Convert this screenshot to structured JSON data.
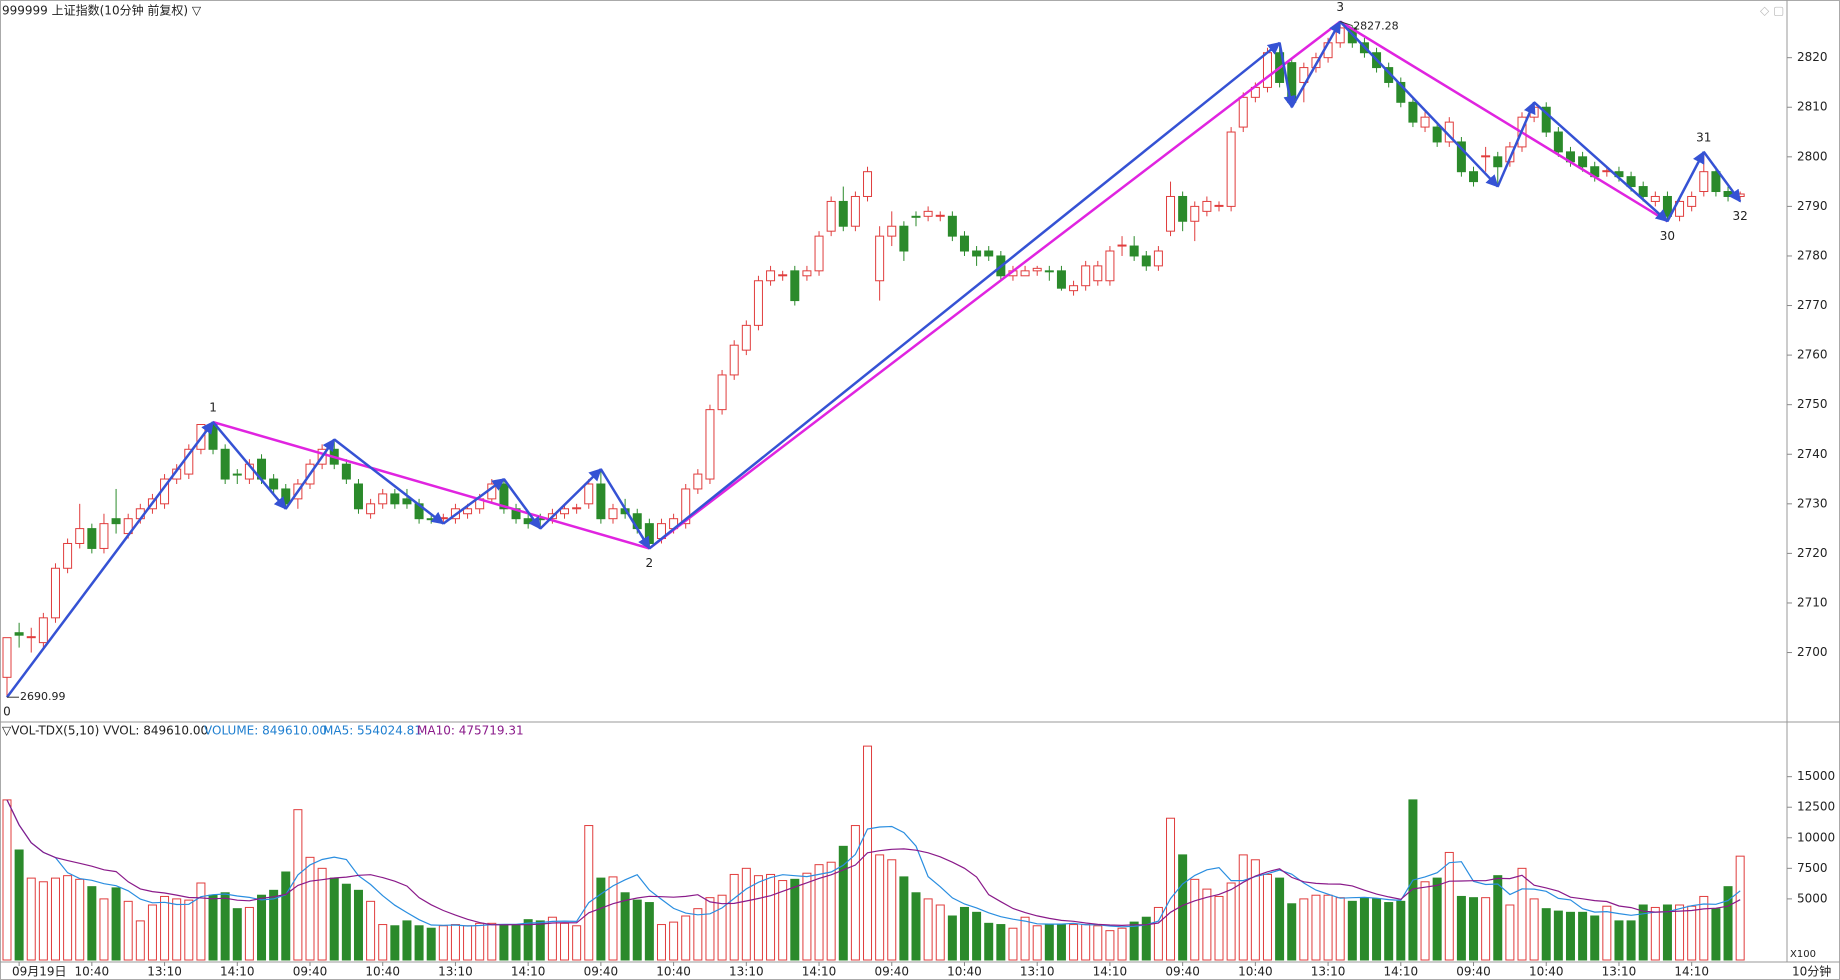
{
  "chart_data": [
    {
      "type": "candlestick",
      "title": "999999 上证指数(10分钟 前复权) ▽",
      "up_color": "#e03c3c",
      "down_color": "#2b8a2b",
      "ylim": [
        2687.4,
        2827.6
      ],
      "yticks": [
        2700,
        2710,
        2720,
        2730,
        2740,
        2750,
        2760,
        2770,
        2780,
        2790,
        2800,
        2810,
        2820
      ],
      "annotations": {
        "low": "2690.99",
        "high": "2827.28"
      },
      "wave_labels": [
        "0",
        "1",
        "2",
        "3",
        "30",
        "31",
        "32"
      ],
      "zigzag_colors": [
        "#3552d4",
        "#e024e0"
      ],
      "ohlc": [
        [
          2695,
          2703,
          2690.99,
          2703
        ],
        [
          2704,
          2706,
          2701,
          2703.5
        ],
        [
          2703,
          2705,
          2700,
          2703.2
        ],
        [
          2702,
          2708,
          2701,
          2707
        ],
        [
          2707,
          2718,
          2706,
          2717
        ],
        [
          2717,
          2723,
          2716,
          2722
        ],
        [
          2722,
          2730,
          2721,
          2725
        ],
        [
          2725,
          2726,
          2720,
          2721
        ],
        [
          2721,
          2728,
          2720,
          2726
        ],
        [
          2727,
          2733,
          2724,
          2726
        ],
        [
          2724,
          2728,
          2723,
          2727
        ],
        [
          2727,
          2730,
          2726,
          2729
        ],
        [
          2729,
          2732,
          2728,
          2731
        ],
        [
          2730,
          2736,
          2729,
          2735
        ],
        [
          2735,
          2738,
          2734,
          2737
        ],
        [
          2736,
          2742,
          2735,
          2741
        ],
        [
          2741,
          2746,
          2740,
          2746
        ],
        [
          2746,
          2746.5,
          2740,
          2741
        ],
        [
          2741,
          2742,
          2734,
          2735
        ],
        [
          2736,
          2737,
          2734,
          2735.8
        ],
        [
          2735,
          2739,
          2734,
          2738
        ],
        [
          2739,
          2740,
          2734,
          2735
        ],
        [
          2735,
          2736,
          2732,
          2733
        ],
        [
          2733,
          2734,
          2729,
          2730
        ],
        [
          2731,
          2735,
          2729,
          2734
        ],
        [
          2734,
          2739,
          2733,
          2738
        ],
        [
          2738,
          2742,
          2737,
          2741
        ],
        [
          2741,
          2743,
          2737,
          2738
        ],
        [
          2738,
          2739,
          2734,
          2735
        ],
        [
          2734,
          2735,
          2728,
          2729
        ],
        [
          2728,
          2731,
          2727,
          2730
        ],
        [
          2730,
          2733,
          2729,
          2732
        ],
        [
          2732,
          2733,
          2729,
          2730
        ],
        [
          2731,
          2733,
          2729,
          2730
        ],
        [
          2730,
          2731,
          2726,
          2727
        ],
        [
          2727,
          2728,
          2726,
          2726.8
        ],
        [
          2727,
          2728,
          2726,
          2727.2
        ],
        [
          2727,
          2730,
          2726,
          2729
        ],
        [
          2728,
          2730,
          2727,
          2729
        ],
        [
          2729,
          2732,
          2728,
          2731
        ],
        [
          2731,
          2735,
          2730,
          2734
        ],
        [
          2734,
          2735,
          2728,
          2729
        ],
        [
          2729,
          2730,
          2726,
          2727
        ],
        [
          2727,
          2728,
          2725,
          2726
        ],
        [
          2727,
          2728,
          2725,
          2726.8
        ],
        [
          2727,
          2729,
          2726,
          2728
        ],
        [
          2728,
          2730,
          2727,
          2729
        ],
        [
          2729,
          2730,
          2728,
          2729.2
        ],
        [
          2730,
          2735,
          2729,
          2734
        ],
        [
          2734,
          2737,
          2726,
          2727
        ],
        [
          2727,
          2730,
          2726,
          2729
        ],
        [
          2729,
          2731,
          2727,
          2728
        ],
        [
          2728,
          2729,
          2724,
          2725
        ],
        [
          2726,
          2727,
          2721,
          2722
        ],
        [
          2723,
          2727,
          2722,
          2726
        ],
        [
          2725,
          2728,
          2724,
          2727
        ],
        [
          2726,
          2734,
          2725,
          2733
        ],
        [
          2733,
          2737,
          2732,
          2736
        ],
        [
          2735,
          2750,
          2734,
          2749
        ],
        [
          2749,
          2757,
          2748,
          2756
        ],
        [
          2756,
          2763,
          2755,
          2762
        ],
        [
          2761,
          2767,
          2760,
          2766
        ],
        [
          2766,
          2776,
          2765,
          2775
        ],
        [
          2775,
          2778,
          2774,
          2777
        ],
        [
          2776,
          2777,
          2775,
          2776.2
        ],
        [
          2777,
          2778,
          2770,
          2771
        ],
        [
          2776,
          2778,
          2775,
          2777
        ],
        [
          2777,
          2785,
          2776,
          2784
        ],
        [
          2785,
          2792,
          2784,
          2791
        ],
        [
          2791,
          2794,
          2785,
          2786
        ],
        [
          2786,
          2793,
          2785,
          2792
        ],
        [
          2792,
          2798,
          2791,
          2797
        ],
        [
          2775,
          2786,
          2771,
          2784
        ],
        [
          2784,
          2789,
          2782,
          2786
        ],
        [
          2786,
          2787,
          2779,
          2781
        ],
        [
          2788,
          2789,
          2786,
          2787.8
        ],
        [
          2788,
          2790,
          2787,
          2789
        ],
        [
          2788,
          2789,
          2787,
          2788.2
        ],
        [
          2788,
          2789,
          2783,
          2784
        ],
        [
          2784,
          2785,
          2780,
          2781
        ],
        [
          2781,
          2782,
          2778,
          2780
        ],
        [
          2781,
          2782,
          2779,
          2780
        ],
        [
          2780,
          2781,
          2775,
          2776
        ],
        [
          2776,
          2778,
          2775,
          2777
        ],
        [
          2776,
          2778,
          2776,
          2777
        ],
        [
          2777,
          2778,
          2776,
          2777.5
        ],
        [
          2777,
          2778,
          2775,
          2776.8
        ],
        [
          2777,
          2778,
          2773,
          2773.5
        ],
        [
          2773,
          2775,
          2772,
          2774
        ],
        [
          2774,
          2779,
          2773,
          2778
        ],
        [
          2775,
          2779,
          2774,
          2778
        ],
        [
          2775,
          2782,
          2774,
          2781
        ],
        [
          2782,
          2784,
          2780,
          2782.2
        ],
        [
          2782,
          2784,
          2779,
          2780
        ],
        [
          2780,
          2781,
          2777,
          2778
        ],
        [
          2778,
          2782,
          2777,
          2781
        ],
        [
          2785,
          2795,
          2784,
          2792
        ],
        [
          2792,
          2793,
          2785,
          2787
        ],
        [
          2787,
          2791,
          2783,
          2790
        ],
        [
          2789,
          2792,
          2788,
          2791
        ],
        [
          2790,
          2791,
          2789,
          2790.2
        ],
        [
          2790,
          2806,
          2789,
          2805
        ],
        [
          2806,
          2813,
          2805,
          2812
        ],
        [
          2812,
          2815,
          2811,
          2814
        ],
        [
          2814,
          2822,
          2813,
          2821
        ],
        [
          2821,
          2823,
          2814,
          2815
        ],
        [
          2819,
          2820,
          2810,
          2811
        ],
        [
          2815,
          2819,
          2811,
          2818
        ],
        [
          2818,
          2821,
          2817,
          2820
        ],
        [
          2820,
          2824,
          2819,
          2823
        ],
        [
          2823,
          2827.28,
          2822,
          2826
        ],
        [
          2826,
          2826.5,
          2822,
          2823
        ],
        [
          2823,
          2824,
          2820,
          2821
        ],
        [
          2821,
          2822,
          2817,
          2818
        ],
        [
          2818,
          2819,
          2814,
          2815
        ],
        [
          2815,
          2816,
          2810,
          2811
        ],
        [
          2811,
          2812,
          2806,
          2807
        ],
        [
          2806,
          2809,
          2805,
          2808
        ],
        [
          2806,
          2807,
          2802,
          2803
        ],
        [
          2803,
          2808,
          2802,
          2807
        ],
        [
          2803,
          2804,
          2796,
          2797
        ],
        [
          2797,
          2798,
          2794,
          2795
        ],
        [
          2800,
          2802,
          2797,
          2800.2
        ],
        [
          2800,
          2801,
          2794,
          2798
        ],
        [
          2799,
          2803,
          2798,
          2802
        ],
        [
          2802,
          2809,
          2801,
          2808
        ],
        [
          2808,
          2811,
          2807,
          2810
        ],
        [
          2810,
          2811,
          2804,
          2805
        ],
        [
          2805,
          2806,
          2800,
          2801
        ],
        [
          2801,
          2802,
          2798,
          2799
        ],
        [
          2800,
          2801,
          2797,
          2798
        ],
        [
          2798,
          2799,
          2795,
          2796
        ],
        [
          2797,
          2798,
          2796,
          2797.2
        ],
        [
          2797,
          2798,
          2795,
          2796
        ],
        [
          2796,
          2797,
          2793,
          2794
        ],
        [
          2794,
          2795,
          2791,
          2792
        ],
        [
          2791,
          2793,
          2790,
          2792
        ],
        [
          2792,
          2793,
          2787,
          2788
        ],
        [
          2788,
          2792,
          2787,
          2791
        ],
        [
          2790,
          2793,
          2789,
          2792
        ],
        [
          2793,
          2801,
          2792,
          2797
        ],
        [
          2797,
          2798,
          2792,
          2793
        ],
        [
          2793,
          2794,
          2791,
          2792
        ],
        [
          2792,
          2793,
          2791,
          2792.5
        ]
      ]
    },
    {
      "type": "volume",
      "header": [
        "▽VOL-TDX(5,10) VVOL: 849610.00",
        "VOLUME: 849610.00",
        "MA5: 554024.81",
        "MA10: 475719.31"
      ],
      "header_colors": [
        "#222222",
        "#1f7fd0",
        "#1f7fd0",
        "#8a1a8a"
      ],
      "ma_colors": [
        "#2a8ee0",
        "#8a1a8a"
      ],
      "unit_label": "X100",
      "period_label": "10分钟",
      "ylim": [
        0,
        18000
      ],
      "yticks": [
        5000,
        7500,
        10000,
        12500,
        15000
      ],
      "categories": [
        null,
        "09月19日",
        null,
        null,
        null,
        null,
        null,
        "10:40",
        null,
        null,
        null,
        null,
        null,
        "13:10",
        null,
        null,
        null,
        null,
        null,
        "14:10",
        null,
        null,
        null,
        null,
        null,
        "09:40",
        null,
        null,
        null,
        null,
        null,
        "10:40",
        null,
        null,
        null,
        null,
        null,
        "13:10",
        null,
        null,
        null,
        null,
        null,
        "14:10",
        null,
        null,
        null,
        null,
        null,
        "09:40",
        null,
        null,
        null,
        null,
        null,
        "10:40",
        null,
        null,
        null,
        null,
        null,
        "13:10",
        null,
        null,
        null,
        null,
        null,
        "14:10",
        null,
        null,
        null,
        null,
        null,
        "09:40",
        null,
        null,
        null,
        null,
        null,
        "10:40",
        null,
        null,
        null,
        null,
        null,
        "13:10",
        null,
        null,
        null,
        null,
        null,
        "14:10",
        null,
        null,
        null,
        null,
        null,
        "09:40",
        null,
        null,
        null,
        null,
        null,
        "10:40",
        null,
        null,
        null,
        null,
        null,
        "13:10",
        null,
        null,
        null,
        null,
        null,
        "14:10",
        null,
        null,
        null,
        null,
        null,
        "09:40",
        null,
        null,
        null,
        null,
        null,
        "10:40",
        null,
        null,
        null,
        null,
        null,
        "13:10",
        null,
        null,
        null,
        null,
        null,
        "14:10",
        null,
        null,
        null,
        null
      ],
      "values": [
        13100,
        9000,
        6700,
        6400,
        6700,
        6900,
        6600,
        6000,
        5000,
        5900,
        4800,
        3200,
        4500,
        5200,
        5000,
        4900,
        6300,
        5300,
        5500,
        4200,
        4300,
        5300,
        5700,
        7200,
        12300,
        8400,
        7500,
        6700,
        6200,
        5700,
        4800,
        2900,
        2800,
        3200,
        2800,
        2600,
        2800,
        2900,
        2800,
        3000,
        3000,
        2900,
        2900,
        3300,
        3200,
        3500,
        3000,
        2800,
        11000,
        6700,
        6800,
        5500,
        4900,
        4700,
        2900,
        3100,
        3600,
        4200,
        5100,
        5300,
        7000,
        7500,
        6900,
        7000,
        6500,
        6600,
        7100,
        7800,
        8000,
        9300,
        11000,
        17500,
        8600,
        8200,
        6800,
        5500,
        5000,
        4500,
        3600,
        4300,
        3900,
        3000,
        2900,
        2600,
        3500,
        2800,
        2900,
        2900,
        2900,
        2900,
        2800,
        2400,
        2600,
        3100,
        3500,
        4300,
        11600,
        8600,
        6600,
        5800,
        5200,
        6300,
        8600,
        8200,
        7000,
        6700,
        4600,
        5000,
        5300,
        5300,
        5100,
        4800,
        5100,
        5000,
        4700,
        4800,
        13100,
        6400,
        6700,
        8800,
        5200,
        5100,
        5100,
        6900,
        4500,
        7500,
        5000,
        4200,
        4000,
        3900,
        3900,
        3600,
        4400,
        3200,
        3200,
        4500,
        4300,
        4500,
        4500,
        4400,
        5200,
        4200,
        6000,
        8496
      ]
    }
  ]
}
